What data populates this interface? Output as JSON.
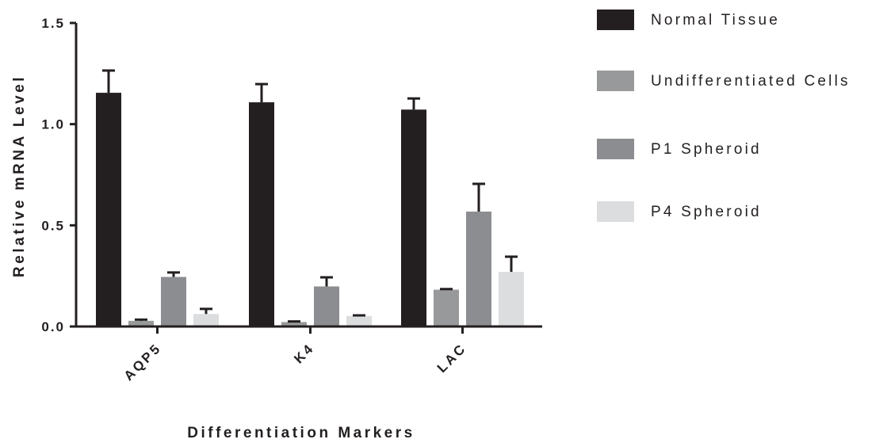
{
  "chart_data": {
    "type": "bar",
    "title": "",
    "xlabel": "Differentiation Markers",
    "ylabel": "Relative mRNA Level",
    "ylim": [
      0,
      1.5
    ],
    "yticks": [
      "0.0",
      "0.5",
      "1.0",
      "1.5"
    ],
    "categories": [
      "AQP5",
      "K4",
      "LAC"
    ],
    "series": [
      {
        "name": "Normal Tissue",
        "color": "#231f20",
        "values": [
          1.155,
          1.108,
          1.072
        ],
        "errors": [
          0.11,
          0.09,
          0.055
        ]
      },
      {
        "name": "Undifferentiated Cells",
        "color": "#98999b",
        "values": [
          0.028,
          0.022,
          0.182
        ],
        "errors": [
          0.006,
          0.003,
          0.003
        ]
      },
      {
        "name": "P1 Spheroid",
        "color": "#8c8d90",
        "values": [
          0.245,
          0.198,
          0.568
        ],
        "errors": [
          0.022,
          0.045,
          0.137
        ]
      },
      {
        "name": "P4 Spheroid",
        "color": "#dcdddf",
        "values": [
          0.062,
          0.052,
          0.27
        ],
        "errors": [
          0.025,
          0.003,
          0.075
        ]
      }
    ],
    "legend_position": "right",
    "grid": false
  }
}
